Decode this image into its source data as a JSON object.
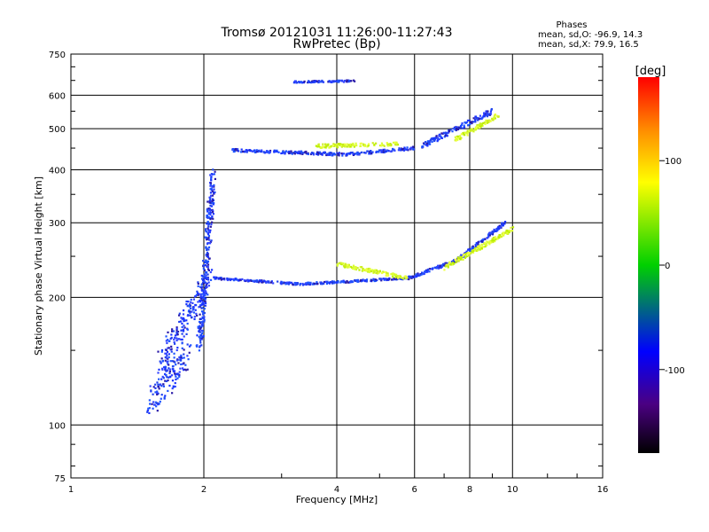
{
  "chart_data": {
    "type": "scatter",
    "title": "Tromsø 20121031 11:26:00-11:27:43",
    "subtitle": "RwPretec (Bp)",
    "xlabel": "Frequency [MHz]",
    "ylabel": "Stationary phase Virtual Height [km]",
    "x_scale": "log",
    "y_scale": "log",
    "xlim": [
      1,
      16
    ],
    "ylim": [
      75,
      750
    ],
    "x_ticks": [
      1,
      2,
      4,
      6,
      8,
      10,
      16
    ],
    "y_ticks": [
      75,
      100,
      200,
      300,
      400,
      500,
      600,
      750
    ],
    "grid": true,
    "legend": {
      "heading": "Phases",
      "line1": "mean, sd,O: -96.9, 14.3",
      "line2": "mean, sd,X:  79.9, 16.5"
    },
    "colorbar": {
      "label": "[deg]",
      "min": -180,
      "max": 180,
      "ticks": [
        -100,
        0,
        100
      ]
    },
    "series": [
      {
        "mode": "O",
        "phase_deg": -97,
        "segments": [
          {
            "f_start": 1.5,
            "f_end": 1.85,
            "h_start": 110,
            "h_end": 150,
            "spread": 0.08
          },
          {
            "f_start": 1.6,
            "f_end": 2.05,
            "h_start": 140,
            "h_end": 220,
            "spread": 0.07
          },
          {
            "f_start": 1.95,
            "f_end": 2.1,
            "h_start": 150,
            "h_end": 390,
            "spread": 0.05
          },
          {
            "f_start": 2.1,
            "f_end": 3.3,
            "h_start": 222,
            "h_end": 215,
            "spread": 0.006
          },
          {
            "f_start": 3.3,
            "f_end": 5.8,
            "h_start": 215,
            "h_end": 222,
            "spread": 0.006
          },
          {
            "f_start": 5.8,
            "f_end": 7.5,
            "h_start": 222,
            "h_end": 245,
            "spread": 0.008
          },
          {
            "f_start": 7.5,
            "f_end": 9.6,
            "h_start": 245,
            "h_end": 300,
            "spread": 0.01
          },
          {
            "f_start": 2.3,
            "f_end": 4.2,
            "h_start": 445,
            "h_end": 435,
            "spread": 0.008
          },
          {
            "f_start": 4.2,
            "f_end": 6.0,
            "h_start": 435,
            "h_end": 450,
            "spread": 0.008
          },
          {
            "f_start": 6.2,
            "f_end": 9.0,
            "h_start": 455,
            "h_end": 550,
            "spread": 0.015
          },
          {
            "f_start": 3.2,
            "f_end": 4.4,
            "h_start": 645,
            "h_end": 648,
            "spread": 0.005
          }
        ]
      },
      {
        "mode": "X",
        "phase_deg": 80,
        "segments": [
          {
            "f_start": 4.0,
            "f_end": 5.8,
            "h_start": 240,
            "h_end": 222,
            "spread": 0.01
          },
          {
            "f_start": 7.0,
            "f_end": 10.0,
            "h_start": 235,
            "h_end": 290,
            "spread": 0.012
          },
          {
            "f_start": 7.4,
            "f_end": 9.3,
            "h_start": 470,
            "h_end": 540,
            "spread": 0.012
          },
          {
            "f_start": 3.6,
            "f_end": 5.5,
            "h_start": 455,
            "h_end": 460,
            "spread": 0.01
          }
        ]
      }
    ]
  }
}
